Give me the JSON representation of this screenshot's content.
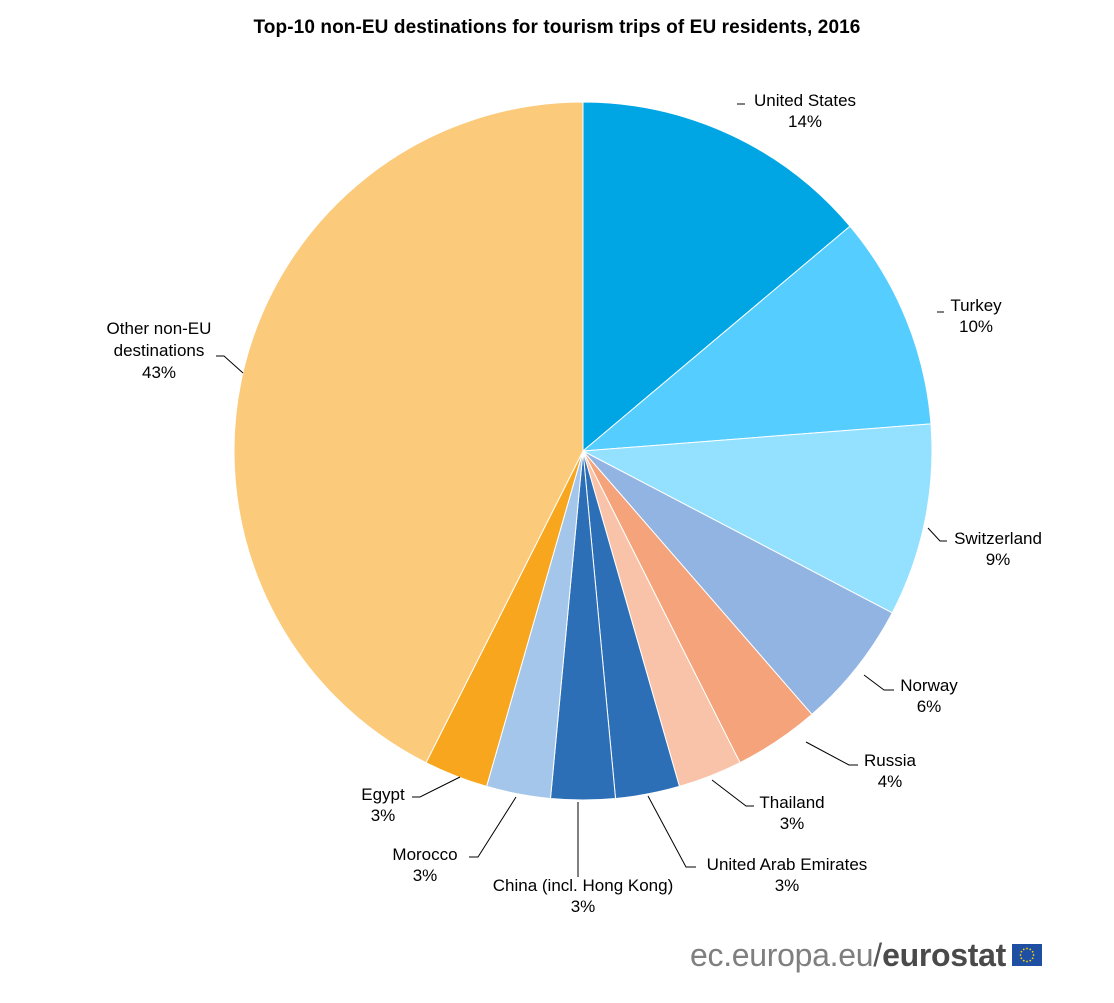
{
  "chart_data": {
    "type": "pie",
    "title": "Top-10 non-EU destinations for tourism trips of EU residents, 2016",
    "slices": [
      {
        "name": "United States",
        "value": 14,
        "label": "14%",
        "color": "#00a5e4"
      },
      {
        "name": "Turkey",
        "value": 10,
        "label": "10%",
        "color": "#55cdff"
      },
      {
        "name": "Switzerland",
        "value": 9,
        "label": "9%",
        "color": "#93e0ff"
      },
      {
        "name": "Norway",
        "value": 6,
        "label": "6%",
        "color": "#92b4e3"
      },
      {
        "name": "Russia",
        "value": 4,
        "label": "4%",
        "color": "#f5a37a"
      },
      {
        "name": "Thailand",
        "value": 3,
        "label": "3%",
        "color": "#f8c3a8"
      },
      {
        "name": "United Arab Emirates",
        "value": 3,
        "label": "3%",
        "color": "#2c6fb7"
      },
      {
        "name": "China (incl. Hong Kong)",
        "value": 3,
        "label": "3%",
        "color": "#2c6fb7"
      },
      {
        "name": "Morocco",
        "value": 3,
        "label": "3%",
        "color": "#a5c6eb"
      },
      {
        "name": "Egypt",
        "value": 3,
        "label": "3%",
        "color": "#f7a61d"
      },
      {
        "name": "Other non-EU destinations",
        "value": 43,
        "label": "43%",
        "color": "#fbca7a"
      }
    ]
  },
  "footer": {
    "site": "ec.europa.eu",
    "separator": "/",
    "brand": "eurostat",
    "flag_icon": "eu-flag-icon"
  }
}
